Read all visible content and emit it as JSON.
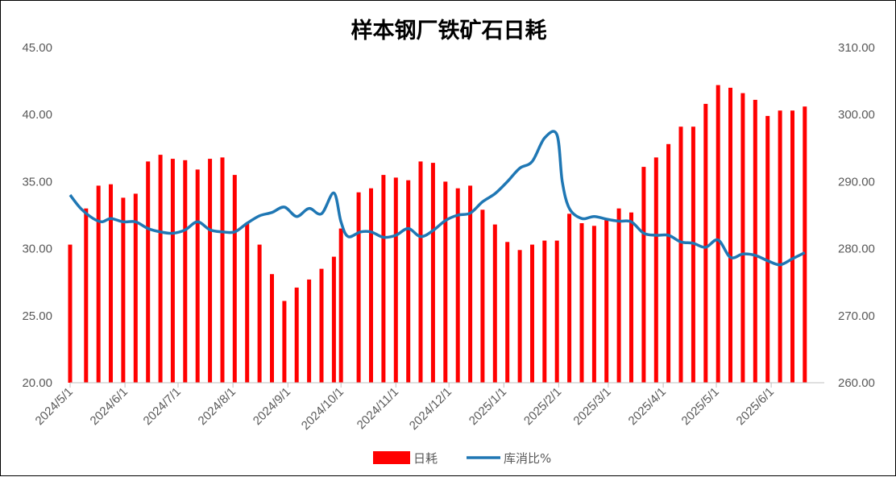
{
  "chart_data": {
    "type": "bar",
    "title": "样本钢厂铁矿石日耗",
    "y_left": {
      "ylim": [
        20,
        45
      ],
      "ticks": [
        "20.00",
        "25.00",
        "30.00",
        "35.00",
        "40.00",
        "45.00"
      ]
    },
    "y_right": {
      "ylim": [
        260,
        310
      ],
      "ticks": [
        "260.00",
        "270.00",
        "280.00",
        "290.00",
        "300.00",
        "310.00"
      ]
    },
    "x": {
      "start": "2024-05-01",
      "end": "2025-07-01",
      "tick_labels": [
        "2024/5/1",
        "2024/6/1",
        "2024/7/1",
        "2024/8/1",
        "2024/9/1",
        "2024/10/1",
        "2024/11/1",
        "2024/12/1",
        "2025/1/1",
        "2025/2/1",
        "2025/3/1",
        "2025/4/1",
        "2025/5/1",
        "2025/6/1"
      ]
    },
    "grid": "none",
    "legend_position": "bottom",
    "series": [
      {
        "name": "日耗",
        "type": "bar",
        "axis": "left",
        "color": "#FF0000",
        "points": [
          [
            "2024-05-01",
            30.3
          ],
          [
            "2024-05-10",
            33.0
          ],
          [
            "2024-05-17",
            34.7
          ],
          [
            "2024-05-24",
            34.8
          ],
          [
            "2024-05-31",
            33.8
          ],
          [
            "2024-06-07",
            34.1
          ],
          [
            "2024-06-14",
            36.5
          ],
          [
            "2024-06-21",
            37.0
          ],
          [
            "2024-06-28",
            36.7
          ],
          [
            "2024-07-05",
            36.6
          ],
          [
            "2024-07-12",
            35.9
          ],
          [
            "2024-07-19",
            36.7
          ],
          [
            "2024-07-26",
            36.8
          ],
          [
            "2024-08-02",
            35.5
          ],
          [
            "2024-08-09",
            31.9
          ],
          [
            "2024-08-16",
            30.3
          ],
          [
            "2024-08-23",
            28.1
          ],
          [
            "2024-08-30",
            26.1
          ],
          [
            "2024-09-06",
            27.1
          ],
          [
            "2024-09-13",
            27.7
          ],
          [
            "2024-09-20",
            28.5
          ],
          [
            "2024-09-27",
            29.4
          ],
          [
            "2024-10-01",
            31.5
          ],
          [
            "2024-10-11",
            34.2
          ],
          [
            "2024-10-18",
            34.5
          ],
          [
            "2024-10-25",
            35.5
          ],
          [
            "2024-11-01",
            35.3
          ],
          [
            "2024-11-08",
            35.1
          ],
          [
            "2024-11-15",
            36.5
          ],
          [
            "2024-11-22",
            36.4
          ],
          [
            "2024-11-29",
            35.0
          ],
          [
            "2024-12-06",
            34.5
          ],
          [
            "2024-12-13",
            34.7
          ],
          [
            "2024-12-20",
            32.9
          ],
          [
            "2024-12-27",
            31.8
          ],
          [
            "2025-01-03",
            30.5
          ],
          [
            "2025-01-10",
            29.9
          ],
          [
            "2025-01-17",
            30.3
          ],
          [
            "2025-01-24",
            30.6
          ],
          [
            "2025-01-31",
            30.6
          ],
          [
            "2025-02-07",
            32.6
          ],
          [
            "2025-02-14",
            31.9
          ],
          [
            "2025-02-21",
            31.7
          ],
          [
            "2025-02-28",
            32.2
          ],
          [
            "2025-03-07",
            33.0
          ],
          [
            "2025-03-14",
            32.7
          ],
          [
            "2025-03-21",
            36.1
          ],
          [
            "2025-03-28",
            36.8
          ],
          [
            "2025-04-04",
            37.8
          ],
          [
            "2025-04-11",
            39.1
          ],
          [
            "2025-04-18",
            39.1
          ],
          [
            "2025-04-25",
            40.8
          ],
          [
            "2025-05-02",
            42.2
          ],
          [
            "2025-05-09",
            42.0
          ],
          [
            "2025-05-16",
            41.6
          ],
          [
            "2025-05-23",
            41.1
          ],
          [
            "2025-05-30",
            39.9
          ],
          [
            "2025-06-06",
            40.3
          ],
          [
            "2025-06-13",
            40.3
          ],
          [
            "2025-06-20",
            40.6
          ]
        ]
      },
      {
        "name": "库消比%",
        "type": "line",
        "axis": "right",
        "color": "#1F77B4",
        "points": [
          [
            "2024-05-01",
            288.0
          ],
          [
            "2024-05-07",
            286.0
          ],
          [
            "2024-05-14",
            284.5
          ],
          [
            "2024-05-19",
            284.0
          ],
          [
            "2024-05-24",
            284.5
          ],
          [
            "2024-05-31",
            284.0
          ],
          [
            "2024-06-07",
            284.0
          ],
          [
            "2024-06-14",
            283.0
          ],
          [
            "2024-06-21",
            282.5
          ],
          [
            "2024-06-28",
            282.3
          ],
          [
            "2024-07-05",
            282.8
          ],
          [
            "2024-07-12",
            284.0
          ],
          [
            "2024-07-19",
            282.8
          ],
          [
            "2024-07-26",
            282.5
          ],
          [
            "2024-08-02",
            282.5
          ],
          [
            "2024-08-09",
            283.8
          ],
          [
            "2024-08-16",
            284.9
          ],
          [
            "2024-08-23",
            285.4
          ],
          [
            "2024-08-30",
            286.2
          ],
          [
            "2024-09-06",
            284.8
          ],
          [
            "2024-09-13",
            286.0
          ],
          [
            "2024-09-20",
            285.2
          ],
          [
            "2024-09-27",
            288.3
          ],
          [
            "2024-10-01",
            284.0
          ],
          [
            "2024-10-05",
            281.8
          ],
          [
            "2024-10-12",
            282.5
          ],
          [
            "2024-10-18",
            282.5
          ],
          [
            "2024-10-25",
            281.7
          ],
          [
            "2024-11-01",
            282.0
          ],
          [
            "2024-11-08",
            283.0
          ],
          [
            "2024-11-15",
            281.8
          ],
          [
            "2024-11-22",
            282.7
          ],
          [
            "2024-11-29",
            284.2
          ],
          [
            "2024-12-06",
            285.0
          ],
          [
            "2024-12-13",
            285.3
          ],
          [
            "2024-12-20",
            287.0
          ],
          [
            "2024-12-27",
            288.2
          ],
          [
            "2025-01-03",
            290.0
          ],
          [
            "2025-01-10",
            292.0
          ],
          [
            "2025-01-17",
            293.0
          ],
          [
            "2025-01-24",
            296.5
          ],
          [
            "2025-01-31",
            297.0
          ],
          [
            "2025-02-03",
            290.0
          ],
          [
            "2025-02-07",
            286.0
          ],
          [
            "2025-02-14",
            284.5
          ],
          [
            "2025-02-21",
            284.8
          ],
          [
            "2025-02-28",
            284.4
          ],
          [
            "2025-03-07",
            284.1
          ],
          [
            "2025-03-14",
            284.0
          ],
          [
            "2025-03-21",
            282.3
          ],
          [
            "2025-03-28",
            282.0
          ],
          [
            "2025-04-04",
            282.0
          ],
          [
            "2025-04-11",
            281.0
          ],
          [
            "2025-04-18",
            280.8
          ],
          [
            "2025-04-25",
            280.2
          ],
          [
            "2025-05-02",
            281.3
          ],
          [
            "2025-05-09",
            278.7
          ],
          [
            "2025-05-16",
            279.2
          ],
          [
            "2025-05-23",
            279.0
          ],
          [
            "2025-05-30",
            278.2
          ],
          [
            "2025-06-06",
            277.6
          ],
          [
            "2025-06-13",
            278.5
          ],
          [
            "2025-06-20",
            279.4
          ]
        ]
      }
    ]
  }
}
